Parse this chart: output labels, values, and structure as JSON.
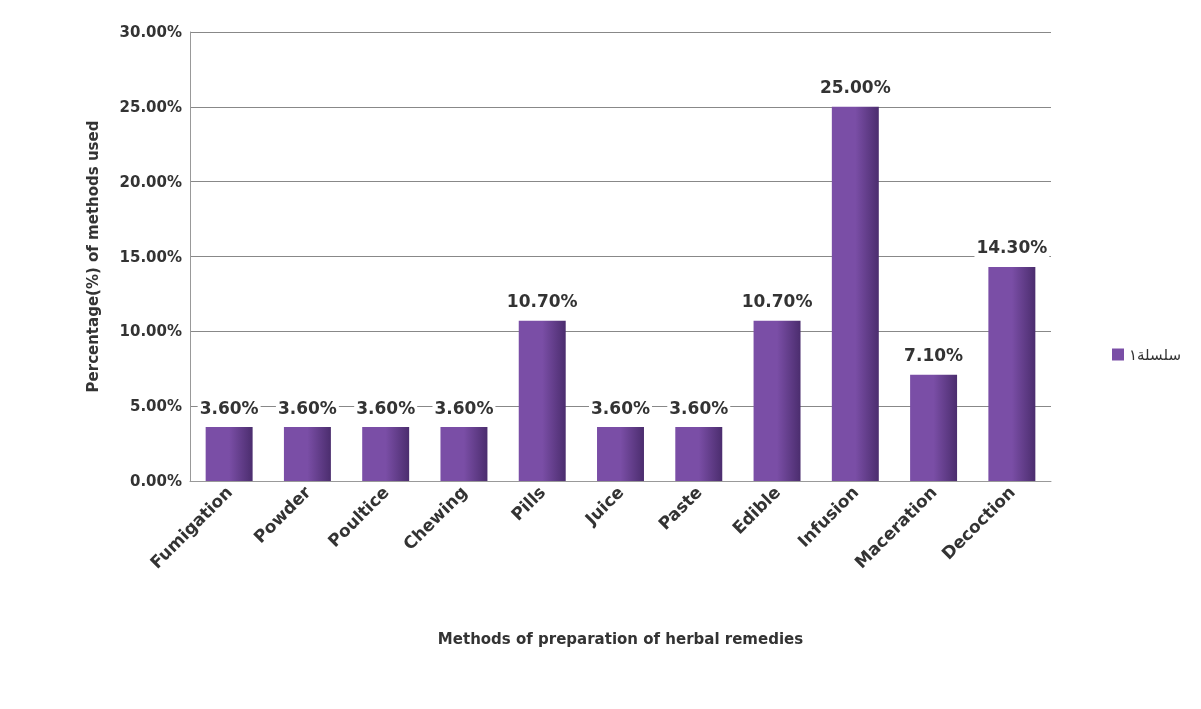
{
  "chart_data": {
    "type": "bar",
    "xlabel": "Methods of preparation of herbal remedies",
    "ylabel": "Percentage(%) of methods used",
    "categories": [
      "Fumigation",
      "Powder",
      "Poultice",
      "Chewing",
      "Pills",
      "Juice",
      "Paste",
      "Edible",
      "Infusion",
      "Maceration",
      "Decoction"
    ],
    "series": [
      {
        "name": "سلسلة١",
        "color": "#7a4ea6",
        "values": [
          3.6,
          3.6,
          3.6,
          3.6,
          10.7,
          3.6,
          3.6,
          10.7,
          25,
          7.1,
          14.3
        ],
        "value_labels": [
          "3.60%",
          "3.60%",
          "3.60%",
          "3.60%",
          "10.70%",
          "3.60%",
          "3.60%",
          "10.70%",
          "25.00%",
          "7.10%",
          "14.30%"
        ]
      }
    ],
    "ylim": [
      0,
      30
    ],
    "yticks": [
      {
        "value": 0,
        "label": "0.00%"
      },
      {
        "value": 5,
        "label": "5.00%"
      },
      {
        "value": 10,
        "label": "10.00%"
      },
      {
        "value": 15,
        "label": "15.00%"
      },
      {
        "value": 20,
        "label": "20.00%"
      },
      {
        "value": 25,
        "label": "25.00%"
      },
      {
        "value": 30,
        "label": "30.00%"
      }
    ],
    "grid": "y",
    "legend": "right"
  }
}
